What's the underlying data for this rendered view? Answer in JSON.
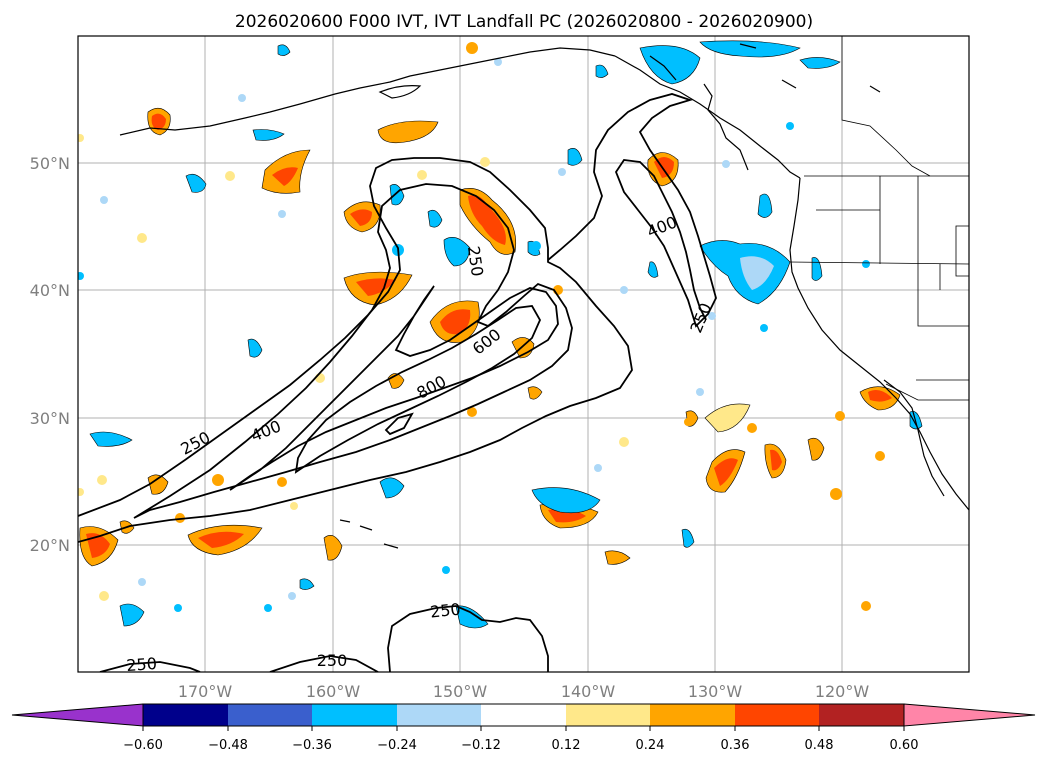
{
  "title": "2026020600 F000 IVT, IVT Landfall PC (2026020800 - 2026020900)",
  "latitude_labels": [
    "50°N",
    "40°N",
    "30°N",
    "20°N"
  ],
  "longitude_labels": [
    "170°W",
    "160°W",
    "150°W",
    "140°W",
    "130°W",
    "120°W"
  ],
  "contour_labels": [
    "250",
    "400",
    "250",
    "600",
    "800",
    "400",
    "250",
    "250",
    "250",
    "250"
  ],
  "colorbar": {
    "tick_labels": [
      "−0.60",
      "−0.48",
      "−0.36",
      "−0.24",
      "−0.12",
      "0.12",
      "0.24",
      "0.36",
      "0.48",
      "0.60"
    ],
    "colors": [
      "#9932cc",
      "#00008b",
      "#3a5fcd",
      "#00bfff",
      "#add8f7",
      "#ffffff",
      "#ffe88a",
      "#ffa500",
      "#ff4500",
      "#b22222",
      "#ff85a8"
    ]
  }
}
